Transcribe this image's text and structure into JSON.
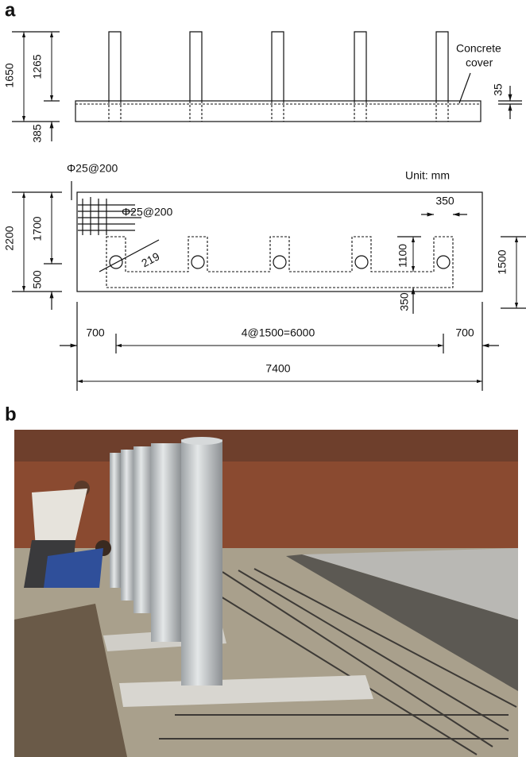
{
  "panel_a": {
    "label": "a",
    "elevation": {
      "dims": [
        "1650",
        "1265",
        "385",
        "35"
      ],
      "note": [
        "Concrete",
        "cover"
      ]
    },
    "plan": {
      "rebar": [
        "Φ25@200",
        "Φ25@200"
      ],
      "unit": "Unit: mm",
      "dims": [
        "2200",
        "1700",
        "500",
        "1500",
        "1100",
        "219",
        "350",
        "350",
        "700",
        "4@1500=6000",
        "700",
        "7400"
      ]
    }
  },
  "panel_b": {
    "label": "b"
  }
}
